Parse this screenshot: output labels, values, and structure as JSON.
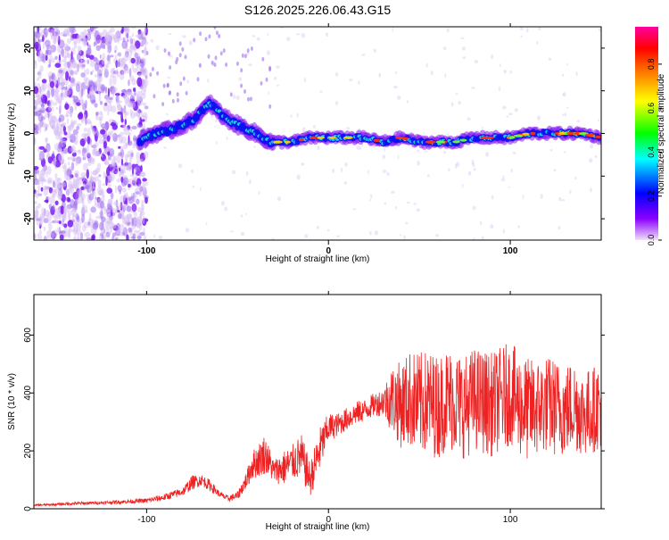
{
  "title": "S126.2025.226.06.43.G15",
  "chart_data": [
    {
      "type": "heatmap",
      "title": "S126.2025.226.06.43.G15",
      "xlabel": "Height of straight line (km)",
      "ylabel": "Frequency (Hz)",
      "xlim": [
        -162,
        150
      ],
      "ylim": [
        -25,
        25
      ],
      "xticks": [
        -100,
        0,
        100
      ],
      "yticks": [
        -20,
        -10,
        0,
        10,
        20
      ],
      "colorbar": {
        "label": "Normalized spectral amplitude",
        "range": [
          0,
          0.97
        ],
        "ticks": [
          "0.0",
          "0.2",
          "0.4",
          "0.6",
          "0.8"
        ],
        "colors": [
          "#f0e0f8",
          "#8b00ff",
          "#0000ff",
          "#00ffff",
          "#00ff00",
          "#ffff00",
          "#ff8000",
          "#ff0000",
          "#ff00a0"
        ]
      },
      "trace": {
        "description_x": [
          -105,
          -95,
          -85,
          -75,
          -65,
          -58,
          -50,
          -40,
          -32,
          -20,
          -10,
          0,
          10,
          20,
          30,
          40,
          50,
          60,
          70,
          80,
          90,
          100,
          110,
          120,
          130,
          140,
          150
        ],
        "description_freq": [
          -2,
          0,
          1,
          3,
          7,
          4,
          2,
          0,
          -2,
          -2,
          -1,
          -1,
          -1,
          -1,
          -2,
          -1,
          -2,
          -2,
          -2,
          -1,
          -1,
          -1,
          0,
          0,
          0,
          0,
          -1
        ]
      }
    },
    {
      "type": "line",
      "xlabel": "Height of straight line (km)",
      "ylabel": "SNR (10 * v/v)",
      "xlim": [
        -162,
        150
      ],
      "ylim": [
        0,
        740
      ],
      "xticks": [
        -100,
        0,
        100
      ],
      "yticks": [
        0,
        200,
        400,
        600
      ],
      "color": "#ee2222",
      "series": [
        {
          "x": [
            -162,
            -150,
            -140,
            -130,
            -120,
            -110,
            -100,
            -90,
            -80,
            -75,
            -70,
            -65,
            -60,
            -55,
            -50,
            -45,
            -42,
            -38,
            -35,
            -30,
            -25,
            -20,
            -15,
            -10,
            -5,
            0,
            5,
            10,
            15,
            20,
            25,
            30,
            35,
            40,
            45,
            50,
            55,
            60,
            65,
            70,
            75,
            80,
            85,
            90,
            95,
            100,
            105,
            110,
            115,
            120,
            125,
            130,
            135,
            140,
            145,
            150
          ],
          "values": [
            12,
            15,
            18,
            20,
            22,
            25,
            28,
            40,
            60,
            90,
            100,
            80,
            50,
            35,
            45,
            100,
            150,
            170,
            190,
            130,
            140,
            160,
            180,
            100,
            200,
            280,
            290,
            310,
            330,
            340,
            360,
            370,
            380,
            360,
            380,
            360,
            370,
            350,
            380,
            370,
            350,
            380,
            370,
            360,
            380,
            400,
            360,
            340,
            350,
            360,
            350,
            340,
            360,
            330,
            340,
            360
          ],
          "spread": [
            3,
            4,
            5,
            5,
            6,
            7,
            8,
            12,
            15,
            25,
            20,
            20,
            10,
            10,
            15,
            30,
            50,
            60,
            70,
            40,
            60,
            60,
            80,
            60,
            80,
            50,
            40,
            40,
            40,
            40,
            40,
            50,
            120,
            150,
            170,
            180,
            180,
            180,
            180,
            180,
            180,
            180,
            180,
            180,
            180,
            180,
            180,
            180,
            170,
            170,
            170,
            160,
            160,
            150,
            150,
            150
          ]
        }
      ]
    }
  ]
}
